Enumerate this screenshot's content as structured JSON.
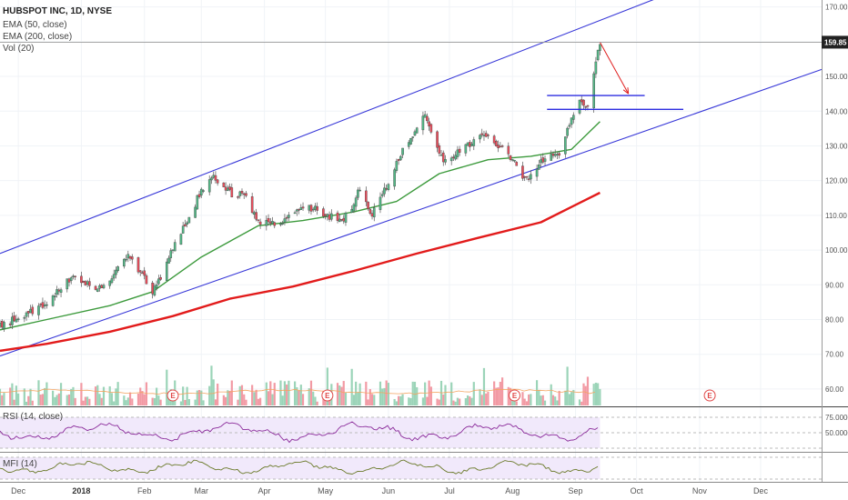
{
  "legend": {
    "symbol": "HUBSPOT INC, 1D, NYSE",
    "ema50": "EMA (50, close)",
    "ema200": "EMA (200, close)",
    "vol": "Vol (20)",
    "rsi": "RSI (14, close)",
    "mfi": "MFI (14)"
  },
  "last_price_label": "159.85",
  "event_marker_label": "E",
  "chart_data": {
    "type": "candlestick",
    "price_axis": {
      "min": 55,
      "max": 172,
      "ticks": [
        "170.00",
        "160.00",
        "150.00",
        "140.00",
        "130.00",
        "120.00",
        "110.00",
        "100.00",
        "90.00",
        "80.00",
        "70.00",
        "60.00"
      ]
    },
    "time_axis": {
      "start": "2017-11-22",
      "end": "2018-12-31",
      "ticks": [
        {
          "date": "2017-12-01",
          "label": "Dec"
        },
        {
          "date": "2018-01-01",
          "label": "2018"
        },
        {
          "date": "2018-02-01",
          "label": "Feb"
        },
        {
          "date": "2018-03-01",
          "label": "Mar"
        },
        {
          "date": "2018-04-01",
          "label": "Apr"
        },
        {
          "date": "2018-05-01",
          "label": "May"
        },
        {
          "date": "2018-06-01",
          "label": "Jun"
        },
        {
          "date": "2018-07-01",
          "label": "Jul"
        },
        {
          "date": "2018-08-01",
          "label": "Aug"
        },
        {
          "date": "2018-09-01",
          "label": "Sep"
        },
        {
          "date": "2018-10-01",
          "label": "Oct"
        },
        {
          "date": "2018-11-01",
          "label": "Nov"
        },
        {
          "date": "2018-12-01",
          "label": "Dec"
        }
      ]
    },
    "close_path": [
      [
        "2017-11-22",
        78
      ],
      [
        "2017-11-29",
        80
      ],
      [
        "2017-12-06",
        82
      ],
      [
        "2017-12-13",
        84
      ],
      [
        "2017-12-20",
        88
      ],
      [
        "2017-12-27",
        92
      ],
      [
        "2018-01-03",
        90
      ],
      [
        "2018-01-10",
        89
      ],
      [
        "2018-01-17",
        93
      ],
      [
        "2018-01-24",
        99
      ],
      [
        "2018-01-31",
        93
      ],
      [
        "2018-02-05",
        88
      ],
      [
        "2018-02-09",
        92
      ],
      [
        "2018-02-14",
        100
      ],
      [
        "2018-02-21",
        107
      ],
      [
        "2018-02-28",
        116
      ],
      [
        "2018-03-07",
        121
      ],
      [
        "2018-03-12",
        118
      ],
      [
        "2018-03-16",
        116
      ],
      [
        "2018-03-22",
        116
      ],
      [
        "2018-03-29",
        108
      ],
      [
        "2018-04-06",
        108
      ],
      [
        "2018-04-13",
        109
      ],
      [
        "2018-04-20",
        112
      ],
      [
        "2018-04-26",
        112
      ],
      [
        "2018-05-02",
        110
      ],
      [
        "2018-05-09",
        108
      ],
      [
        "2018-05-14",
        112
      ],
      [
        "2018-05-18",
        118
      ],
      [
        "2018-05-24",
        110
      ],
      [
        "2018-05-31",
        118
      ],
      [
        "2018-06-07",
        128
      ],
      [
        "2018-06-14",
        133
      ],
      [
        "2018-06-19",
        140
      ],
      [
        "2018-06-22",
        134
      ],
      [
        "2018-06-28",
        126
      ],
      [
        "2018-07-05",
        128
      ],
      [
        "2018-07-12",
        131
      ],
      [
        "2018-07-19",
        133
      ],
      [
        "2018-07-26",
        130
      ],
      [
        "2018-08-01",
        126
      ],
      [
        "2018-08-07",
        120
      ],
      [
        "2018-08-14",
        125
      ],
      [
        "2018-08-20",
        128
      ],
      [
        "2018-08-24",
        127
      ],
      [
        "2018-08-29",
        136
      ],
      [
        "2018-09-03",
        144
      ],
      [
        "2018-09-07",
        141
      ],
      [
        "2018-09-10",
        151
      ],
      [
        "2018-09-13",
        159.85
      ]
    ],
    "ema50": [
      [
        "2017-11-22",
        77
      ],
      [
        "2017-12-15",
        80
      ],
      [
        "2018-01-15",
        84
      ],
      [
        "2018-02-05",
        88
      ],
      [
        "2018-03-01",
        98
      ],
      [
        "2018-03-29",
        107
      ],
      [
        "2018-04-20",
        108.5
      ],
      [
        "2018-05-15",
        111
      ],
      [
        "2018-06-05",
        114
      ],
      [
        "2018-06-26",
        122
      ],
      [
        "2018-07-20",
        126
      ],
      [
        "2018-08-10",
        127
      ],
      [
        "2018-08-30",
        129
      ],
      [
        "2018-09-13",
        137
      ]
    ],
    "ema200": [
      [
        "2017-11-22",
        71
      ],
      [
        "2017-12-15",
        73
      ],
      [
        "2018-01-15",
        76.5
      ],
      [
        "2018-02-15",
        81
      ],
      [
        "2018-03-15",
        86
      ],
      [
        "2018-04-15",
        89.5
      ],
      [
        "2018-05-15",
        94
      ],
      [
        "2018-06-15",
        99
      ],
      [
        "2018-07-15",
        103.5
      ],
      [
        "2018-08-15",
        108
      ],
      [
        "2018-09-13",
        116.5
      ]
    ],
    "channel_upper": [
      [
        "2017-11-22",
        99
      ],
      [
        "2018-10-22",
        175
      ]
    ],
    "channel_lower": [
      [
        "2017-11-22",
        69.5
      ],
      [
        "2018-12-31",
        152
      ]
    ],
    "horizontal_levels": [
      {
        "from": "2018-08-18",
        "to": "2018-10-05",
        "price": 144.5
      },
      {
        "from": "2018-08-18",
        "to": "2018-10-24",
        "price": 140.5
      }
    ],
    "arrow": {
      "from": [
        "2018-09-13",
        159.85
      ],
      "to": [
        "2018-09-27",
        145
      ]
    },
    "last_price": 159.85,
    "earnings_events": [
      "2018-02-15",
      "2018-05-02",
      "2018-08-02",
      "2018-11-06"
    ],
    "rsi": {
      "levels": [
        "75.0000",
        "50.0000"
      ]
    }
  }
}
